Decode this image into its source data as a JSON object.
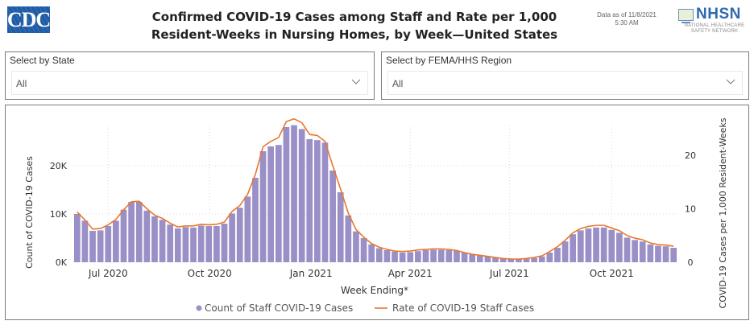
{
  "header": {
    "logo_left": "CDC",
    "title_line1": "Confirmed COVID-19 Cases among Staff and Rate per 1,000",
    "title_line2": "Resident-Weeks in Nursing Homes, by Week—United States",
    "as_of_line1": "Data as of 11/8/2021",
    "as_of_line2": "5:30 AM",
    "logo_right": "NHSN",
    "logo_right_sub1": "NATIONAL HEALTHCARE",
    "logo_right_sub2": "SAFETY NETWORK"
  },
  "filters": {
    "state": {
      "label": "Select by State",
      "value": "All",
      "icon": "chevron-down-icon"
    },
    "region": {
      "label": "Select by FEMA/HHS Region",
      "value": "All",
      "icon": "chevron-down-icon"
    }
  },
  "colors": {
    "bar": "#9a8fc6",
    "line": "#e8772e",
    "grid": "#d8d8d8",
    "text": "#333333"
  },
  "chart_data": {
    "type": "bar",
    "combo": "bar+line (dual axis)",
    "title": "Confirmed COVID-19 Cases among Staff and Rate per 1,000 Resident-Weeks in Nursing Homes, by Week—United States",
    "xlabel": "Week Ending*",
    "ylabel": "Count of COVID-19 Cases",
    "y2label": "COVID-19 Cases per 1,000 Resident-Weeks",
    "ylim": [
      0,
      29000
    ],
    "y2lim": [
      0,
      29
    ],
    "yticks": [
      "0K",
      "10K",
      "20K"
    ],
    "ytick_values": [
      0,
      10000,
      20000
    ],
    "y2ticks": [
      "0",
      "10",
      "20"
    ],
    "y2tick_values": [
      0,
      10,
      20
    ],
    "xtick_labels": [
      "Jul 2020",
      "Oct 2020",
      "Jan 2021",
      "Apr 2021",
      "Jul 2021",
      "Oct 2021"
    ],
    "xtick_index": [
      4.5,
      17.6,
      30.7,
      43.5,
      56.3,
      69.5
    ],
    "grid": true,
    "legend_position": "bottom",
    "legend": [
      "Count of Staff COVID-19 Cases",
      "Rate of COVID-19 Staff Cases"
    ],
    "series": [
      {
        "name": "Count of Staff COVID-19 Cases",
        "type": "bar",
        "axis": "left",
        "values": [
          10000,
          8600,
          6500,
          6600,
          7500,
          8600,
          10900,
          12500,
          12500,
          10700,
          9500,
          8800,
          7800,
          7000,
          7300,
          7200,
          7600,
          7500,
          7500,
          8000,
          10100,
          11300,
          13600,
          17500,
          23000,
          24000,
          24300,
          28000,
          28400,
          27600,
          25500,
          25300,
          24800,
          19000,
          14500,
          9700,
          6400,
          5000,
          3700,
          2900,
          2500,
          2200,
          2000,
          2100,
          2300,
          2500,
          2600,
          2600,
          2500,
          2400,
          2000,
          1600,
          1400,
          1200,
          1000,
          800,
          700,
          700,
          800,
          900,
          1200,
          2000,
          3000,
          4300,
          5800,
          6600,
          7000,
          7200,
          7200,
          6700,
          6100,
          5100,
          4600,
          4300,
          3700,
          3400,
          3300,
          3000
        ]
      },
      {
        "name": "Rate of COVID-19 Staff Cases",
        "type": "line",
        "axis": "right",
        "values": [
          9.4,
          7.9,
          6.2,
          6.3,
          7.0,
          8.0,
          9.8,
          11.3,
          11.4,
          10.0,
          8.8,
          8.2,
          7.3,
          6.6,
          6.8,
          6.8,
          7.1,
          7.0,
          7.1,
          7.5,
          9.5,
          10.6,
          12.7,
          16.4,
          21.6,
          22.6,
          23.3,
          26.3,
          26.8,
          26.1,
          23.9,
          23.7,
          22.6,
          18.0,
          13.7,
          9.2,
          6.1,
          4.7,
          3.5,
          2.8,
          2.4,
          2.1,
          2.0,
          2.1,
          2.3,
          2.4,
          2.5,
          2.5,
          2.4,
          2.2,
          1.8,
          1.5,
          1.3,
          1.1,
          0.9,
          0.7,
          0.6,
          0.6,
          0.7,
          0.9,
          1.2,
          2.0,
          2.9,
          4.1,
          5.5,
          6.3,
          6.7,
          6.9,
          6.9,
          6.4,
          5.9,
          5.0,
          4.5,
          4.2,
          3.6,
          3.3,
          3.2,
          3.0
        ]
      }
    ]
  }
}
